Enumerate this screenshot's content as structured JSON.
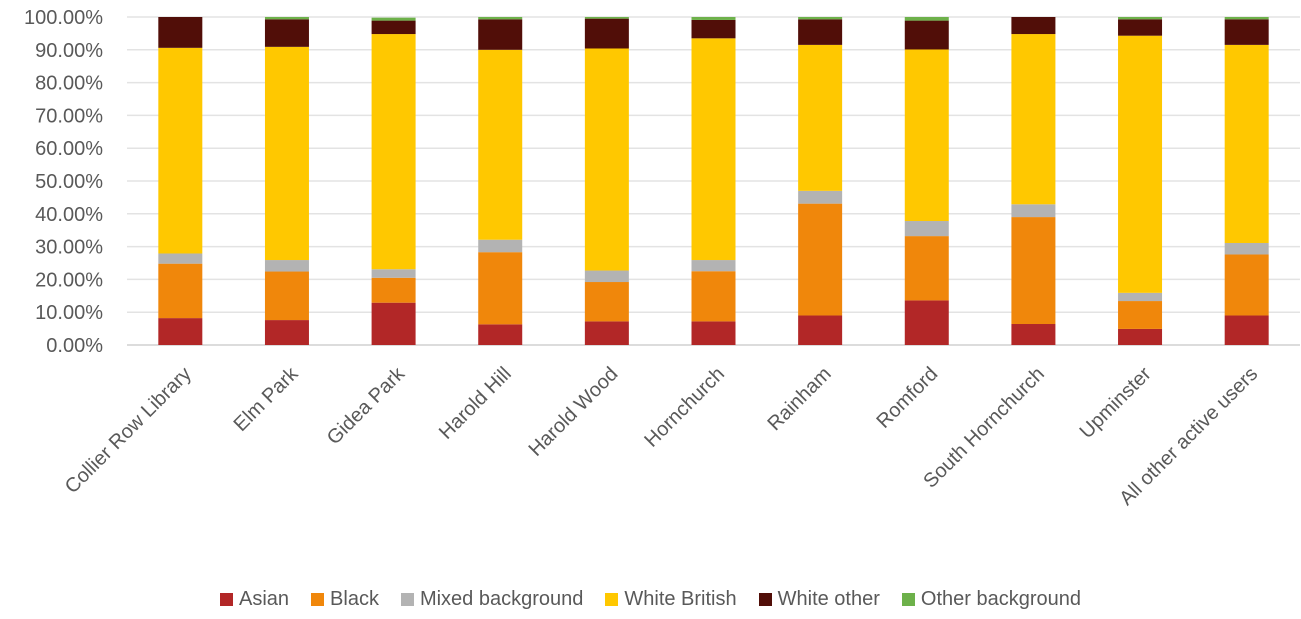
{
  "chart_data": {
    "type": "bar",
    "stacked": true,
    "title": "",
    "xlabel": "",
    "ylabel": "",
    "ylim": [
      0,
      100
    ],
    "y_ticks": [
      "0.00%",
      "10.00%",
      "20.00%",
      "30.00%",
      "40.00%",
      "50.00%",
      "60.00%",
      "70.00%",
      "80.00%",
      "90.00%",
      "100.00%"
    ],
    "grid": true,
    "legend_position": "bottom",
    "categories": [
      "Collier Row Library",
      "Elm Park",
      "Gidea Park",
      "Harold Hill",
      "Harold Wood",
      "Hornchurch",
      "Rainham",
      "Romford",
      "South Hornchurch",
      "Upminster",
      "All other active users"
    ],
    "series": [
      {
        "name": "Asian",
        "color": "#b22727",
        "values": [
          8.2,
          7.6,
          12.9,
          6.3,
          7.2,
          7.2,
          9.0,
          13.6,
          6.4,
          4.9,
          9.0
        ]
      },
      {
        "name": "Black",
        "color": "#f0870b",
        "values": [
          16.6,
          14.8,
          7.6,
          22.0,
          12.0,
          15.3,
          34.1,
          19.6,
          32.6,
          8.5,
          18.6
        ]
      },
      {
        "name": "Mixed background",
        "color": "#b3b3b3",
        "values": [
          3.1,
          3.5,
          2.6,
          3.8,
          3.5,
          3.4,
          3.9,
          4.6,
          3.9,
          2.5,
          3.5
        ]
      },
      {
        "name": "White British",
        "color": "#ffc800",
        "values": [
          62.7,
          65.0,
          71.7,
          57.9,
          67.7,
          67.6,
          44.5,
          52.3,
          51.9,
          78.4,
          60.4
        ]
      },
      {
        "name": "White other",
        "color": "#510e08",
        "values": [
          9.4,
          8.4,
          4.1,
          9.3,
          9.1,
          5.6,
          7.8,
          8.8,
          5.2,
          5.0,
          7.8
        ]
      },
      {
        "name": "Other background",
        "color": "#6db14a",
        "values": [
          0.0,
          0.7,
          0.9,
          0.7,
          0.5,
          0.9,
          0.7,
          1.1,
          0.0,
          0.7,
          0.7
        ]
      }
    ]
  }
}
